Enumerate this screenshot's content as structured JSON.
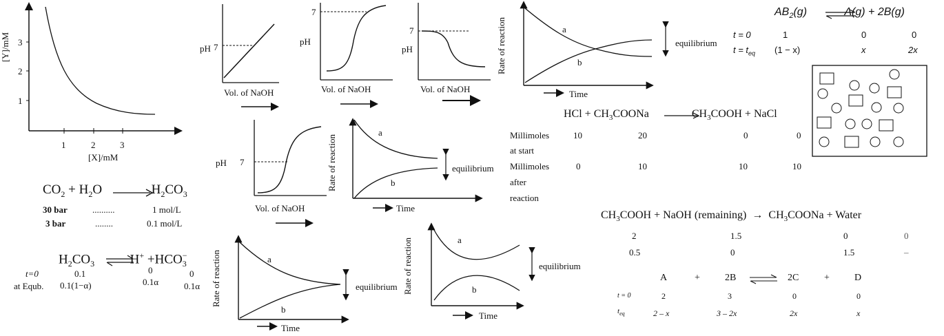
{
  "graph_yx": {
    "ylabel": "[Y]/mM",
    "xlabel": "[X]/mM",
    "yticks": [
      "3",
      "2",
      "1"
    ],
    "xticks": [
      "1",
      "2",
      "3"
    ],
    "chart_data": {
      "type": "line",
      "xlabel": "[X]/mM",
      "ylabel": "[Y]/mM",
      "series": [
        {
          "x": [
            0.5,
            1,
            1.5,
            2,
            2.5,
            3,
            3.5
          ],
          "values": [
            3.6,
            2.0,
            1.35,
            1.0,
            0.8,
            0.65,
            0.6
          ]
        }
      ]
    }
  },
  "co2_eq": {
    "lhs": "CO",
    "sub1": "2",
    "plus": "+ H",
    "sub2": "2",
    "o": "O",
    "rhs": "H",
    "sub3": "2",
    "co3": "CO",
    "sub4": "3",
    "row1_left": "30 bar",
    "row1_dots": "..........",
    "row1_right": "1 mol/L",
    "row2_left": "3 bar",
    "row2_dots": "........",
    "row2_right": "0.1 mol/L"
  },
  "h2co3_eq": {
    "species1": "H",
    "s1a": "2",
    "s1b": "CO",
    "s1c": "3",
    "species2": "H",
    "sup2": "+",
    "plus": "+HCO",
    "sub3": "3",
    "sup3": "−",
    "row1_label": "t=0",
    "row1_v1": "0.1",
    "row1_v2": "0",
    "row1_v3": "0",
    "row2_label": "at Equb.",
    "row2_v1": "0.1(1−α)",
    "row2_v2": "0.1α",
    "row2_v3": "0.1α"
  },
  "ph_graphs": {
    "ylabel": "pH",
    "seven": "7",
    "xlabel": "Vol. of NaOH"
  },
  "rate_graphs": {
    "ylabel": "Rate of reaction",
    "xlabel": "Time",
    "label_a": "a",
    "label_b": "b",
    "equilibrium": "equilibrium"
  },
  "ab2_eq": {
    "lhs": "AB",
    "lhs_sub": "2",
    "lhs_phase": "(g)",
    "rhs1": "A(g)",
    "plus": "+",
    "rhs2": "2B(g)",
    "row1_label": "t = 0",
    "row1_v1": "1",
    "row1_v2": "0",
    "row1_v3": "0",
    "row2_label": "t = t",
    "row2_sub": "eq",
    "row2_v1": "(1 − x)",
    "row2_v2": "x",
    "row2_v3": "2x"
  },
  "hcl_eq": {
    "lhs": "HCl + CH",
    "sub1": "3",
    "lhs2": "COONa",
    "rhs": "CH",
    "sub2": "3",
    "rhs2": "COOH + NaCl",
    "row1_label": "Millimoles",
    "row1_label2": "at start",
    "row1_v1": "10",
    "row1_v2": "20",
    "row1_v3": "0",
    "row1_v4": "0",
    "row2_label": "Millimoles",
    "row2_label2": "after",
    "row2_label3": "reaction",
    "row2_v1": "0",
    "row2_v2": "10",
    "row2_v3": "10",
    "row2_v4": "10"
  },
  "naoh_eq": {
    "lhs": "CH",
    "sub1": "3",
    "lhs2": "COOH + NaOH (remaining)",
    "rhs": "CH",
    "sub2": "3",
    "rhs2": "COONa + Water",
    "row1_v1": "2",
    "row1_v2": "1.5",
    "row1_v3": "0",
    "row1_v4": "0",
    "row2_v1": "0.5",
    "row2_v2": "0",
    "row2_v3": "1.5",
    "row2_v4": "–"
  },
  "abcd_eq": {
    "A": "A",
    "plus1": "+",
    "B": "2B",
    "C": "2C",
    "plus2": "+",
    "D": "D",
    "row1_label": "t = 0",
    "row1_v1": "2",
    "row1_v2": "3",
    "row1_v3": "0",
    "row1_v4": "0",
    "row2_label": "t",
    "row2_sub": "eq",
    "row2_v1": "2 – x",
    "row2_v2": "3 – 2x",
    "row2_v3": "2x",
    "row2_v4": "x"
  }
}
